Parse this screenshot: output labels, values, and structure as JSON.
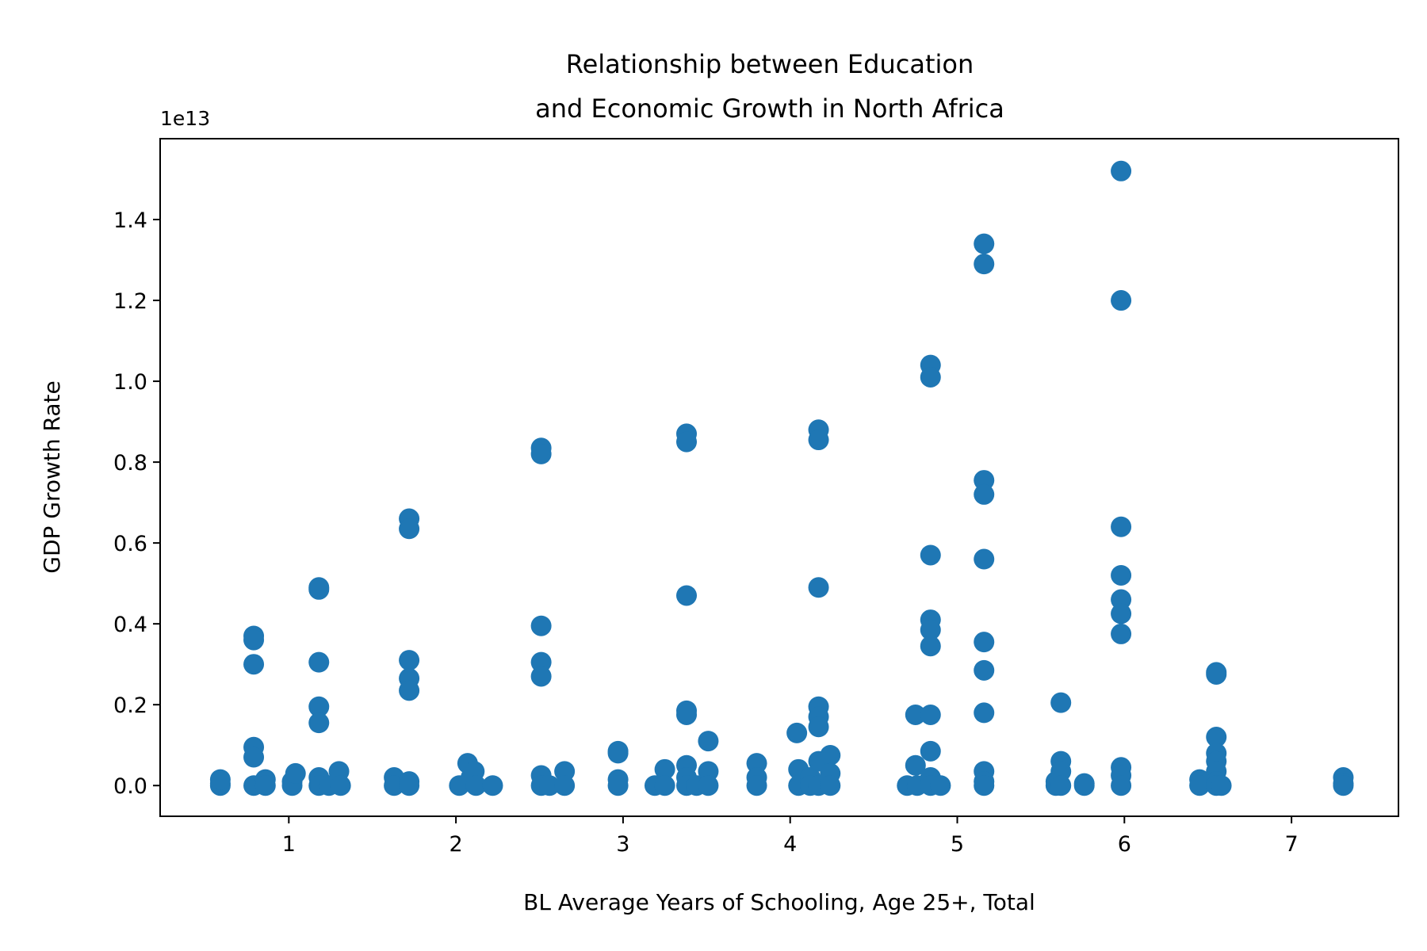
{
  "chart_data": {
    "type": "scatter",
    "title_lines": [
      "Relationship between Education",
      "and Economic Growth in North Africa"
    ],
    "xlabel": "BL Average Years of Schooling, Age 25+, Total",
    "ylabel": "GDP Growth Rate",
    "y_offset_label": "1e13",
    "y_scale": 10000000000000.0,
    "xlim": [
      0.23,
      7.64
    ],
    "ylim": [
      -0.076,
      1.6
    ],
    "x_ticks": [
      1,
      2,
      3,
      4,
      5,
      6,
      7
    ],
    "x_tick_labels": [
      "1",
      "2",
      "3",
      "4",
      "5",
      "6",
      "7"
    ],
    "y_ticks": [
      0.0,
      0.2,
      0.4,
      0.6,
      0.8,
      1.0,
      1.2,
      1.4
    ],
    "y_tick_labels": [
      "0.0",
      "0.2",
      "0.4",
      "0.6",
      "0.8",
      "1.0",
      "1.2",
      "1.4"
    ],
    "grid": false,
    "marker_color": "#1f77b4",
    "series": [
      {
        "name": "North Africa",
        "points": [
          [
            0.59,
            0.0
          ],
          [
            0.59,
            0.005
          ],
          [
            0.59,
            0.015
          ],
          [
            0.79,
            0.37
          ],
          [
            0.79,
            0.36
          ],
          [
            0.79,
            0.3
          ],
          [
            0.79,
            0.095
          ],
          [
            0.79,
            0.07
          ],
          [
            0.79,
            0.0
          ],
          [
            0.86,
            0.015
          ],
          [
            0.86,
            0.0
          ],
          [
            1.02,
            0.0
          ],
          [
            1.02,
            0.01
          ],
          [
            1.04,
            0.03
          ],
          [
            1.18,
            0.49
          ],
          [
            1.18,
            0.485
          ],
          [
            1.18,
            0.305
          ],
          [
            1.18,
            0.195
          ],
          [
            1.18,
            0.155
          ],
          [
            1.18,
            0.02
          ],
          [
            1.18,
            0.0
          ],
          [
            1.24,
            0.0
          ],
          [
            1.3,
            0.035
          ],
          [
            1.31,
            0.0
          ],
          [
            1.63,
            0.02
          ],
          [
            1.63,
            0.0
          ],
          [
            1.72,
            0.66
          ],
          [
            1.72,
            0.635
          ],
          [
            1.72,
            0.31
          ],
          [
            1.72,
            0.265
          ],
          [
            1.72,
            0.235
          ],
          [
            1.72,
            0.01
          ],
          [
            1.72,
            0.0
          ],
          [
            2.02,
            0.0
          ],
          [
            2.07,
            0.055
          ],
          [
            2.09,
            0.02
          ],
          [
            2.11,
            0.035
          ],
          [
            2.12,
            0.0
          ],
          [
            2.22,
            0.0
          ],
          [
            2.51,
            0.835
          ],
          [
            2.51,
            0.82
          ],
          [
            2.51,
            0.395
          ],
          [
            2.51,
            0.305
          ],
          [
            2.51,
            0.27
          ],
          [
            2.51,
            0.025
          ],
          [
            2.51,
            0.0
          ],
          [
            2.56,
            0.0
          ],
          [
            2.65,
            0.035
          ],
          [
            2.65,
            0.0
          ],
          [
            2.97,
            0.085
          ],
          [
            2.97,
            0.08
          ],
          [
            2.97,
            0.015
          ],
          [
            2.97,
            0.0
          ],
          [
            3.19,
            0.0
          ],
          [
            3.25,
            0.04
          ],
          [
            3.25,
            0.0
          ],
          [
            3.38,
            0.87
          ],
          [
            3.38,
            0.85
          ],
          [
            3.38,
            0.47
          ],
          [
            3.38,
            0.185
          ],
          [
            3.38,
            0.175
          ],
          [
            3.38,
            0.05
          ],
          [
            3.38,
            0.02
          ],
          [
            3.38,
            0.0
          ],
          [
            3.44,
            0.0
          ],
          [
            3.51,
            0.11
          ],
          [
            3.51,
            0.035
          ],
          [
            3.51,
            0.0
          ],
          [
            3.8,
            0.055
          ],
          [
            3.8,
            0.02
          ],
          [
            3.8,
            0.0
          ],
          [
            4.04,
            0.13
          ],
          [
            4.05,
            0.04
          ],
          [
            4.05,
            0.0
          ],
          [
            4.12,
            0.02
          ],
          [
            4.12,
            0.0
          ],
          [
            4.17,
            0.88
          ],
          [
            4.17,
            0.855
          ],
          [
            4.17,
            0.49
          ],
          [
            4.17,
            0.195
          ],
          [
            4.17,
            0.17
          ],
          [
            4.17,
            0.145
          ],
          [
            4.17,
            0.06
          ],
          [
            4.17,
            0.0
          ],
          [
            4.24,
            0.075
          ],
          [
            4.24,
            0.03
          ],
          [
            4.24,
            0.0
          ],
          [
            4.7,
            0.0
          ],
          [
            4.75,
            0.175
          ],
          [
            4.75,
            0.05
          ],
          [
            4.76,
            0.0
          ],
          [
            4.84,
            1.04
          ],
          [
            4.84,
            1.01
          ],
          [
            4.84,
            0.57
          ],
          [
            4.84,
            0.41
          ],
          [
            4.84,
            0.385
          ],
          [
            4.84,
            0.345
          ],
          [
            4.84,
            0.175
          ],
          [
            4.84,
            0.085
          ],
          [
            4.84,
            0.02
          ],
          [
            4.84,
            0.0
          ],
          [
            4.9,
            0.0
          ],
          [
            5.16,
            1.34
          ],
          [
            5.16,
            1.29
          ],
          [
            5.16,
            0.755
          ],
          [
            5.16,
            0.72
          ],
          [
            5.16,
            0.56
          ],
          [
            5.16,
            0.355
          ],
          [
            5.16,
            0.285
          ],
          [
            5.16,
            0.18
          ],
          [
            5.16,
            0.035
          ],
          [
            5.16,
            0.01
          ],
          [
            5.16,
            0.0
          ],
          [
            5.59,
            0.01
          ],
          [
            5.59,
            0.0
          ],
          [
            5.62,
            0.205
          ],
          [
            5.62,
            0.06
          ],
          [
            5.62,
            0.035
          ],
          [
            5.62,
            0.0
          ],
          [
            5.76,
            0.005
          ],
          [
            5.76,
            0.0
          ],
          [
            5.98,
            1.52
          ],
          [
            5.98,
            1.2
          ],
          [
            5.98,
            0.64
          ],
          [
            5.98,
            0.52
          ],
          [
            5.98,
            0.46
          ],
          [
            5.98,
            0.425
          ],
          [
            5.98,
            0.375
          ],
          [
            5.98,
            0.045
          ],
          [
            5.98,
            0.025
          ],
          [
            5.98,
            0.0
          ],
          [
            6.45,
            0.015
          ],
          [
            6.45,
            0.0
          ],
          [
            6.55,
            0.28
          ],
          [
            6.55,
            0.275
          ],
          [
            6.55,
            0.12
          ],
          [
            6.55,
            0.08
          ],
          [
            6.55,
            0.06
          ],
          [
            6.55,
            0.035
          ],
          [
            6.55,
            0.01
          ],
          [
            6.55,
            0.0
          ],
          [
            6.58,
            0.0
          ],
          [
            7.31,
            0.02
          ],
          [
            7.31,
            0.005
          ],
          [
            7.31,
            0.0
          ]
        ]
      }
    ]
  }
}
